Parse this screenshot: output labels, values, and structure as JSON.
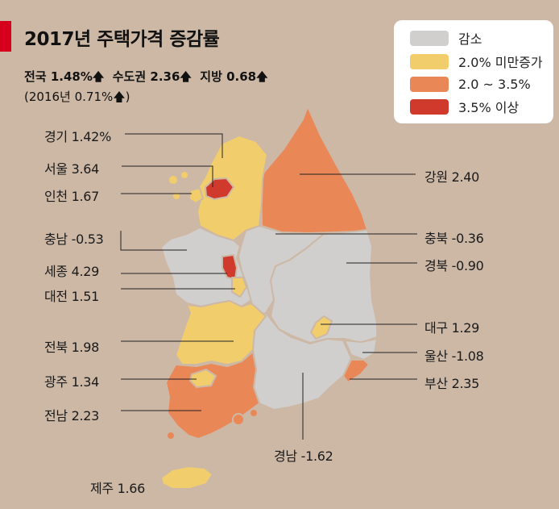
{
  "title": "2017년 주택가격 증감률",
  "summary": {
    "nation_label": "전국",
    "nation_value": "1.48%",
    "capital_label": "수도권",
    "capital_value": "2.36",
    "local_label": "지방",
    "local_value": "0.68",
    "arrow": "🡅",
    "previous": "(2016년 0.71%🡅)"
  },
  "legend": [
    {
      "label": "감소",
      "color": "#d0cfcd"
    },
    {
      "label": "2.0% 미만증가",
      "color": "#f2cd6b"
    },
    {
      "label": "2.0 ~ 3.5%",
      "color": "#ea8757"
    },
    {
      "label": "3.5% 이상",
      "color": "#cf3a2c"
    }
  ],
  "regions": [
    {
      "name": "경기",
      "value": "1.42%"
    },
    {
      "name": "서울",
      "value": "3.64"
    },
    {
      "name": "인천",
      "value": "1.67"
    },
    {
      "name": "충남",
      "value": "-0.53"
    },
    {
      "name": "세종",
      "value": "4.29"
    },
    {
      "name": "대전",
      "value": "1.51"
    },
    {
      "name": "전북",
      "value": "1.98"
    },
    {
      "name": "광주",
      "value": "1.34"
    },
    {
      "name": "전남",
      "value": "2.23"
    },
    {
      "name": "제주",
      "value": "1.66"
    },
    {
      "name": "강원",
      "value": "2.40"
    },
    {
      "name": "충북",
      "value": "-0.36"
    },
    {
      "name": "경북",
      "value": "-0.90"
    },
    {
      "name": "대구",
      "value": "1.29"
    },
    {
      "name": "울산",
      "value": "-1.08"
    },
    {
      "name": "부산",
      "value": "2.35"
    },
    {
      "name": "경남",
      "value": "-1.62"
    }
  ]
}
